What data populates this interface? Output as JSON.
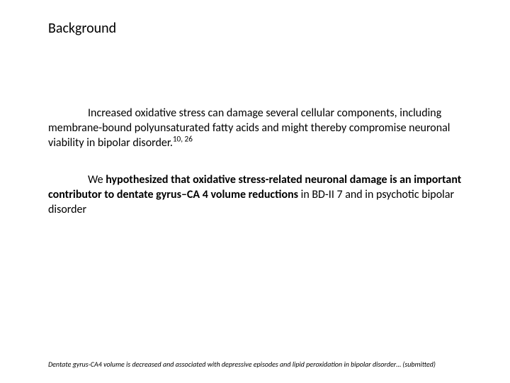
{
  "title": "Background",
  "para1_leading": "Increased oxidative stress can damage several cellular components, including membrane-bound polyunsaturated fatty acids and might thereby compromise neuronal viability in bipolar disorder.",
  "para1_sup": "10, 26",
  "para2_prefix": "We ",
  "para2_bold": "hypothesized that oxidative stress-related neuronal damage is an important contributor to dentate gyrus–CA 4 volume reductions",
  "para2_suffix": " in BD-II 7 and in psychotic bipolar disorder",
  "footer": "Dentate gyrus-CA4 volume is decreased and associated with depressive episodes and lipid peroxidation in bipolar disorder… (submitted)"
}
